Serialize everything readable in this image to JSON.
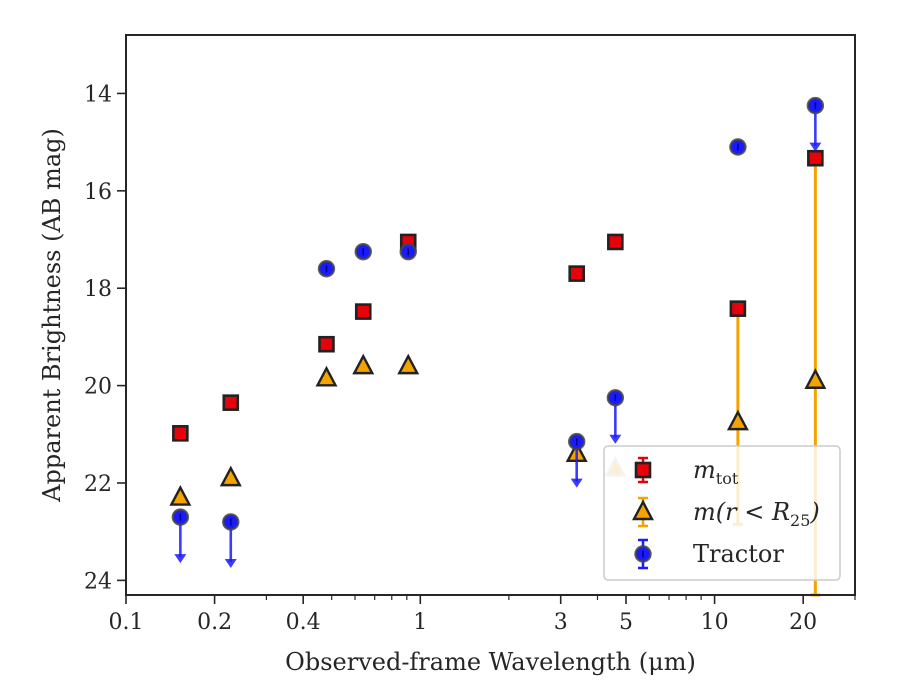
{
  "chart_data": {
    "type": "scatter",
    "xlabel": "Observed-frame Wavelength (μm)",
    "ylabel": "Apparent Brightness (AB mag)",
    "xscale": "log",
    "xlim": [
      0.1,
      30
    ],
    "ylim": [
      24.3,
      12.8
    ],
    "y_inverted": true,
    "grid": false,
    "legend_position": "bottom-right",
    "x_ticks": [
      {
        "value": 0.1,
        "label": "0.1"
      },
      {
        "value": 0.2,
        "label": "0.2"
      },
      {
        "value": 0.4,
        "label": "0.4"
      },
      {
        "value": 1,
        "label": "1"
      },
      {
        "value": 3,
        "label": "3"
      },
      {
        "value": 5,
        "label": "5"
      },
      {
        "value": 10,
        "label": "10"
      },
      {
        "value": 20,
        "label": "20"
      }
    ],
    "x_minor_ticks": [
      0.3,
      0.5,
      0.6,
      0.7,
      0.8,
      0.9,
      2,
      4,
      6,
      7,
      8,
      9,
      30
    ],
    "y_ticks": [
      {
        "value": 14,
        "label": "14"
      },
      {
        "value": 16,
        "label": "16"
      },
      {
        "value": 18,
        "label": "18"
      },
      {
        "value": 20,
        "label": "20"
      },
      {
        "value": 22,
        "label": "22"
      },
      {
        "value": 24,
        "label": "24"
      }
    ],
    "series": [
      {
        "name": "m_tot",
        "legend_label": "m",
        "legend_sub": "tot",
        "marker": "square",
        "color": "#e8000b",
        "points": [
          {
            "x": 0.153,
            "y": 20.98
          },
          {
            "x": 0.227,
            "y": 20.35
          },
          {
            "x": 0.48,
            "y": 19.15
          },
          {
            "x": 0.64,
            "y": 18.48
          },
          {
            "x": 0.91,
            "y": 17.05
          },
          {
            "x": 3.4,
            "y": 17.7
          },
          {
            "x": 4.6,
            "y": 17.05
          },
          {
            "x": 12.0,
            "y": 18.42
          },
          {
            "x": 22.0,
            "y": 15.33
          }
        ]
      },
      {
        "name": "m(r < R25)",
        "legend_label": "m(r < R",
        "legend_sub": "25",
        "legend_suffix": ")",
        "marker": "triangle",
        "color": "#f5a300",
        "points": [
          {
            "x": 0.153,
            "y": 22.3
          },
          {
            "x": 0.227,
            "y": 21.9
          },
          {
            "x": 0.48,
            "y": 19.85
          },
          {
            "x": 0.64,
            "y": 19.6
          },
          {
            "x": 0.91,
            "y": 19.6
          },
          {
            "x": 3.4,
            "y": 21.4
          },
          {
            "x": 4.6,
            "y": 21.7,
            "faded": true
          },
          {
            "x": 12.0,
            "y": 20.75,
            "err_up": 2.3,
            "err_down": 2.1
          },
          {
            "x": 22.0,
            "y": 19.9,
            "err_up": 4.6,
            "err_down": 4.4
          }
        ]
      },
      {
        "name": "Tractor",
        "legend_label": "Tractor",
        "marker": "circle",
        "color": "#1a1aff",
        "points": [
          {
            "x": 0.153,
            "y": 22.7,
            "upper_limit": true
          },
          {
            "x": 0.227,
            "y": 22.8,
            "upper_limit": true
          },
          {
            "x": 0.48,
            "y": 17.6
          },
          {
            "x": 0.64,
            "y": 17.25
          },
          {
            "x": 0.91,
            "y": 17.25
          },
          {
            "x": 3.4,
            "y": 21.15,
            "upper_limit": true
          },
          {
            "x": 4.6,
            "y": 20.25,
            "upper_limit": true
          },
          {
            "x": 12.0,
            "y": 15.1
          },
          {
            "x": 22.0,
            "y": 14.25,
            "upper_limit": true
          }
        ]
      }
    ]
  }
}
